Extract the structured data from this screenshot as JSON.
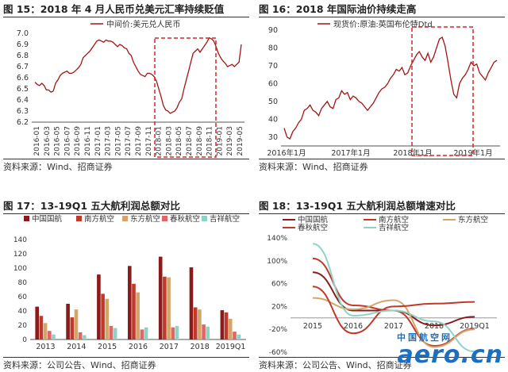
{
  "colors": {
    "maroon": "#8b1a1a",
    "red": "#c0392b",
    "tan": "#d4a56a",
    "pink": "#e06666",
    "teal": "#8fd3c8",
    "grey": "#888888",
    "dash": "#e02020",
    "axis": "#555555",
    "grid": "#dddddd",
    "lineBrown": "#a31515"
  },
  "panels": [
    {
      "title": "图 15：2018 年 4 月人民币兑美元汇率持续贬值",
      "source": "资料来源：Wind、招商证券"
    },
    {
      "title": "图 16：2018 年国际油价持续走高",
      "source": "资料来源：Wind、招商证券"
    },
    {
      "title": "图 17：13-19Q1 五大航利润总额对比",
      "source": "资料来源：公司公告、Wind、招商证券"
    },
    {
      "title": "图 18：13-19Q1 五大航利润总额增速对比",
      "source": "资料来源：公司公告、Wind、招商证券"
    }
  ],
  "watermark": {
    "text": "aero.cn",
    "cn": "中国航空网"
  },
  "chart_data": [
    {
      "type": "line",
      "legend": [
        "中间价:美元兑人民币"
      ],
      "ylim": [
        6.2,
        7.0
      ],
      "yticks": [
        "7.0",
        "6.9",
        "6.8",
        "6.7",
        "6.6",
        "6.5",
        "6.4",
        "6.3",
        "6.2"
      ],
      "xticks": [
        "2016-01",
        "2016-03",
        "2016-05",
        "2016-07",
        "2016-09",
        "2016-11",
        "2017-01",
        "2017-03",
        "2017-05",
        "2017-07",
        "2017-09",
        "2017-11",
        "2018-01",
        "2018-03",
        "2018-05",
        "2018-07",
        "2018-09",
        "2018-11",
        "2019-01",
        "2019-03",
        "2019-05"
      ],
      "series": [
        {
          "name": "中间价:美元兑人民币",
          "values": [
            6.56,
            6.54,
            6.53,
            6.55,
            6.53,
            6.49,
            6.49,
            6.47,
            6.48,
            6.55,
            6.58,
            6.62,
            6.64,
            6.65,
            6.66,
            6.64,
            6.64,
            6.65,
            6.67,
            6.69,
            6.72,
            6.78,
            6.8,
            6.82,
            6.84,
            6.87,
            6.9,
            6.93,
            6.94,
            6.93,
            6.92,
            6.94,
            6.93,
            6.93,
            6.92,
            6.9,
            6.88,
            6.9,
            6.89,
            6.87,
            6.86,
            6.82,
            6.8,
            6.74,
            6.7,
            6.66,
            6.63,
            6.62,
            6.61,
            6.64,
            6.64,
            6.63,
            6.61,
            6.57,
            6.5,
            6.43,
            6.35,
            6.31,
            6.3,
            6.28,
            6.29,
            6.3,
            6.33,
            6.38,
            6.41,
            6.5,
            6.58,
            6.66,
            6.74,
            6.82,
            6.84,
            6.86,
            6.83,
            6.86,
            6.89,
            6.92,
            6.96,
            6.95,
            6.93,
            6.88,
            6.82,
            6.78,
            6.75,
            6.73,
            6.7,
            6.71,
            6.72,
            6.7,
            6.72,
            6.74,
            6.9
          ]
        }
      ]
    },
    {
      "type": "line",
      "legend": [
        "现货价:原油:英国布伦特Dtd"
      ],
      "ylim": [
        25,
        90
      ],
      "yticks": [
        "90",
        "80",
        "70",
        "60",
        "50",
        "40",
        "30"
      ],
      "xticks": [
        "2016年1月",
        "2017年1月",
        "2018年1月",
        "2019年1月"
      ],
      "series": [
        {
          "name": "现货价:原油:英国布伦特Dtd",
          "values": [
            35,
            30,
            29,
            33,
            35,
            38,
            40,
            45,
            46,
            48,
            45,
            44,
            42,
            46,
            48,
            50,
            47,
            46,
            51,
            52,
            56,
            54,
            55,
            51,
            53,
            52,
            50,
            49,
            47,
            45,
            47,
            49,
            52,
            55,
            57,
            58,
            60,
            63,
            65,
            68,
            67,
            69,
            65,
            66,
            70,
            73,
            76,
            78,
            75,
            73,
            77,
            72,
            75,
            80,
            85,
            86,
            81,
            72,
            62,
            54,
            52,
            60,
            63,
            65,
            68,
            72,
            70,
            71,
            66,
            64,
            62,
            66,
            69,
            72,
            73
          ]
        }
      ]
    },
    {
      "type": "bar",
      "legend": [
        "中国国航",
        "南方航空",
        "东方航空",
        "春秋航空",
        "吉祥航空"
      ],
      "ylim": [
        0,
        140
      ],
      "yticks": [
        "140",
        "120",
        "100",
        "80",
        "60",
        "40",
        "20",
        "0"
      ],
      "categories": [
        "2013",
        "2014",
        "2015",
        "2016",
        "2017",
        "2018",
        "2019Q1"
      ],
      "series": [
        {
          "name": "中国国航",
          "values": [
            46,
            50,
            91,
            103,
            116,
            101,
            41
          ]
        },
        {
          "name": "南方航空",
          "values": [
            33,
            31,
            64,
            78,
            88,
            45,
            38
          ]
        },
        {
          "name": "东方航空",
          "values": [
            23,
            42,
            57,
            66,
            87,
            42,
            29
          ]
        },
        {
          "name": "春秋航空",
          "values": [
            12,
            10,
            19,
            14,
            17,
            21,
            11
          ]
        },
        {
          "name": "吉祥航空",
          "values": [
            7,
            6,
            16,
            17,
            19,
            18,
            7
          ]
        }
      ]
    },
    {
      "type": "line",
      "legend": [
        "中国国航",
        "南方航空",
        "东方航空",
        "春秋航空",
        "吉祥航空"
      ],
      "ylim": [
        -60,
        140
      ],
      "yticks": [
        "140%",
        "100%",
        "60%",
        "20%",
        "-20%",
        "-60%"
      ],
      "categories": [
        "2015",
        "2016",
        "2017",
        "2018",
        "2019Q1"
      ],
      "series": [
        {
          "name": "中国国航",
          "values": [
            80,
            13,
            13,
            -13,
            2
          ]
        },
        {
          "name": "南方航空",
          "values": [
            104,
            22,
            13,
            -49,
            -19
          ]
        },
        {
          "name": "东方航空",
          "values": [
            35,
            15,
            31,
            -51,
            -20
          ]
        },
        {
          "name": "春秋航空",
          "values": [
            55,
            -27,
            20,
            25,
            28
          ]
        },
        {
          "name": "吉祥航空",
          "values": [
            130,
            4,
            13,
            -6,
            -59
          ]
        }
      ]
    }
  ]
}
